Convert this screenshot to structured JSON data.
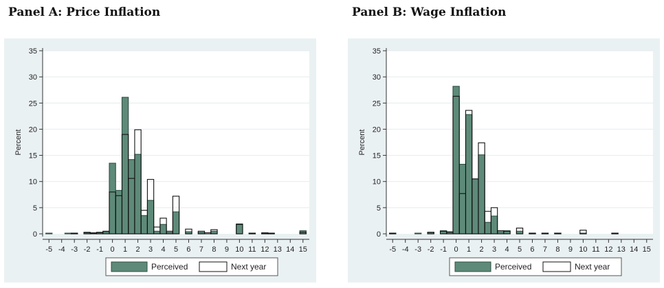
{
  "chart_data": [
    {
      "type": "bar",
      "title": "Panel A: Price Inflation",
      "ylabel": "Percent",
      "xlabel": "",
      "xlim": [
        -5.5,
        15.5
      ],
      "ylim": [
        0,
        35
      ],
      "xticks": [
        -5,
        -4,
        -3,
        -2,
        -1,
        0,
        1,
        2,
        3,
        4,
        5,
        6,
        7,
        8,
        9,
        10,
        11,
        12,
        13,
        14,
        15
      ],
      "yticks": [
        0,
        5,
        10,
        15,
        20,
        25,
        30,
        35
      ],
      "grid": true,
      "legend": "bottom",
      "series": [
        {
          "name": "Perceived",
          "color": "#5e8a79",
          "points": [
            {
              "x": -5,
              "y": 0.1
            },
            {
              "x": -3.5,
              "y": 0.1
            },
            {
              "x": -3,
              "y": 0.1
            },
            {
              "x": -2,
              "y": 0.2
            },
            {
              "x": -1.5,
              "y": 0.1
            },
            {
              "x": -1,
              "y": 0.2
            },
            {
              "x": -0.5,
              "y": 0.4
            },
            {
              "x": 0,
              "y": 13.5
            },
            {
              "x": 0.5,
              "y": 8.3
            },
            {
              "x": 1,
              "y": 26.1
            },
            {
              "x": 1.5,
              "y": 14.2
            },
            {
              "x": 2,
              "y": 15.2
            },
            {
              "x": 2.5,
              "y": 3.5
            },
            {
              "x": 3,
              "y": 6.4
            },
            {
              "x": 3.5,
              "y": 0.5
            },
            {
              "x": 4,
              "y": 1.8
            },
            {
              "x": 4.5,
              "y": 0.3
            },
            {
              "x": 5,
              "y": 4.2
            },
            {
              "x": 6,
              "y": 0.4
            },
            {
              "x": 7,
              "y": 0.3
            },
            {
              "x": 8,
              "y": 0.5
            },
            {
              "x": 10,
              "y": 1.9
            },
            {
              "x": 11,
              "y": 0.1
            },
            {
              "x": 12,
              "y": 0.1
            },
            {
              "x": 12.5,
              "y": 0.1
            },
            {
              "x": 15,
              "y": 0.6
            }
          ]
        },
        {
          "name": "Next year",
          "color": "#ffffff",
          "points": [
            {
              "x": -3,
              "y": 0.1
            },
            {
              "x": -2,
              "y": 0.3
            },
            {
              "x": -1.5,
              "y": 0.2
            },
            {
              "x": -1,
              "y": 0.3
            },
            {
              "x": -0.5,
              "y": 0.5
            },
            {
              "x": 0,
              "y": 8.0
            },
            {
              "x": 0.5,
              "y": 7.3
            },
            {
              "x": 1,
              "y": 19.0
            },
            {
              "x": 1.5,
              "y": 10.6
            },
            {
              "x": 2,
              "y": 19.9
            },
            {
              "x": 2.5,
              "y": 4.5
            },
            {
              "x": 3,
              "y": 10.4
            },
            {
              "x": 3.5,
              "y": 1.3
            },
            {
              "x": 4,
              "y": 3.0
            },
            {
              "x": 4.5,
              "y": 0.5
            },
            {
              "x": 5,
              "y": 7.2
            },
            {
              "x": 6,
              "y": 0.9
            },
            {
              "x": 7,
              "y": 0.5
            },
            {
              "x": 7.5,
              "y": 0.2
            },
            {
              "x": 8,
              "y": 0.8
            },
            {
              "x": 10,
              "y": 1.8
            },
            {
              "x": 11,
              "y": 0.1
            },
            {
              "x": 12,
              "y": 0.2
            },
            {
              "x": 12.5,
              "y": 0.1
            },
            {
              "x": 15,
              "y": 0.3
            }
          ]
        }
      ]
    },
    {
      "type": "bar",
      "title": "Panel B: Wage Inflation",
      "ylabel": "Percent",
      "xlabel": "",
      "xlim": [
        -5.5,
        15.5
      ],
      "ylim": [
        0,
        35
      ],
      "xticks": [
        -5,
        -4,
        -3,
        -2,
        -1,
        0,
        1,
        2,
        3,
        4,
        5,
        6,
        7,
        8,
        9,
        10,
        11,
        12,
        13,
        14,
        15
      ],
      "yticks": [
        0,
        5,
        10,
        15,
        20,
        25,
        30,
        35
      ],
      "grid": true,
      "legend": "bottom",
      "series": [
        {
          "name": "Perceived",
          "color": "#5e8a79",
          "points": [
            {
              "x": -5,
              "y": 0.1
            },
            {
              "x": -3,
              "y": 0.1
            },
            {
              "x": -2,
              "y": 0.3
            },
            {
              "x": -1,
              "y": 0.6
            },
            {
              "x": -0.5,
              "y": 0.4
            },
            {
              "x": 0,
              "y": 28.2
            },
            {
              "x": 0.5,
              "y": 13.3
            },
            {
              "x": 1,
              "y": 22.8
            },
            {
              "x": 1.5,
              "y": 10.5
            },
            {
              "x": 2,
              "y": 15.1
            },
            {
              "x": 2.5,
              "y": 2.2
            },
            {
              "x": 3,
              "y": 3.4
            },
            {
              "x": 3.5,
              "y": 0.4
            },
            {
              "x": 4,
              "y": 0.6
            },
            {
              "x": 5,
              "y": 0.5
            },
            {
              "x": 6,
              "y": 0.1
            },
            {
              "x": 7,
              "y": 0.1
            },
            {
              "x": 8,
              "y": 0.1
            },
            {
              "x": 10,
              "y": 0.1
            },
            {
              "x": 12.5,
              "y": 0.1
            }
          ]
        },
        {
          "name": "Next year",
          "color": "#ffffff",
          "points": [
            {
              "x": -5,
              "y": 0.1
            },
            {
              "x": -2,
              "y": 0.3
            },
            {
              "x": -1,
              "y": 0.5
            },
            {
              "x": -0.5,
              "y": 0.3
            },
            {
              "x": 0,
              "y": 26.3
            },
            {
              "x": 0.5,
              "y": 7.7
            },
            {
              "x": 1,
              "y": 23.6
            },
            {
              "x": 1.5,
              "y": 10.5
            },
            {
              "x": 2,
              "y": 17.4
            },
            {
              "x": 2.5,
              "y": 4.3
            },
            {
              "x": 3,
              "y": 5.0
            },
            {
              "x": 3.5,
              "y": 0.6
            },
            {
              "x": 4,
              "y": 0.5
            },
            {
              "x": 5,
              "y": 1.1
            },
            {
              "x": 6,
              "y": 0.1
            },
            {
              "x": 7,
              "y": 0.1
            },
            {
              "x": 8,
              "y": 0.1
            },
            {
              "x": 10,
              "y": 0.7
            },
            {
              "x": 12.5,
              "y": 0.1
            }
          ]
        }
      ]
    }
  ]
}
